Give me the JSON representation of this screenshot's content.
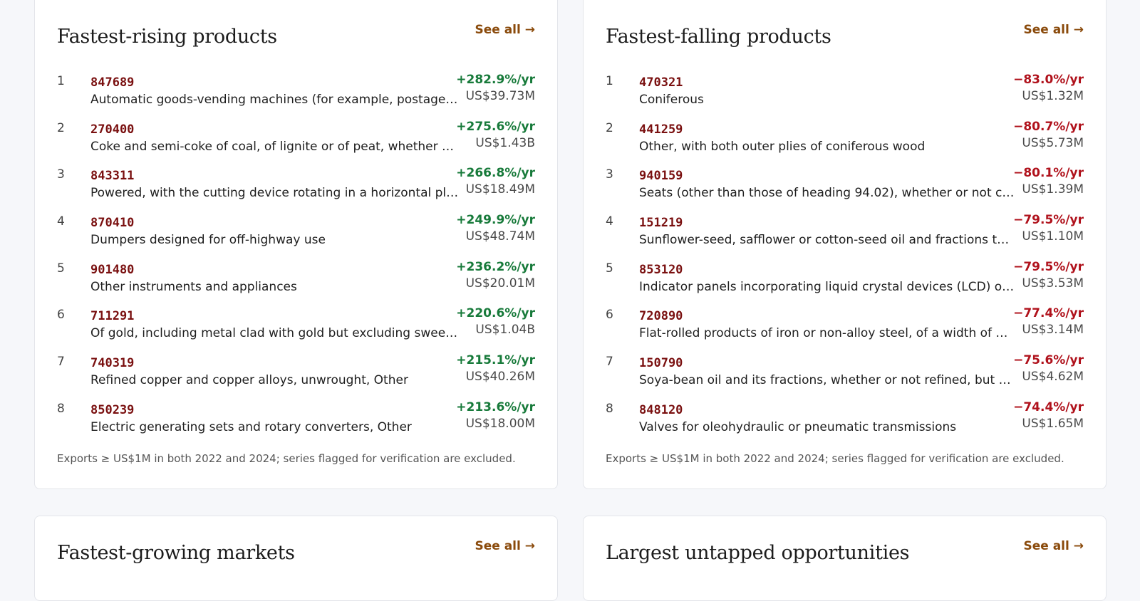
{
  "see_all_label": "See all →",
  "footnote": "Exports ≥ US$1M in both 2022 and 2024; series flagged for verification are excluded.",
  "colors": {
    "accent": "#8a4a0b",
    "code": "#7a1010",
    "positive": "#177a3a",
    "negative": "#b0121c"
  },
  "rising": {
    "title": "Fastest-rising products",
    "items": [
      {
        "rank": "1",
        "code": "847689",
        "desc": "Automatic goods-vending machines (for example, postage…",
        "rate": "+282.9%/yr",
        "amount": "US$39.73M"
      },
      {
        "rank": "2",
        "code": "270400",
        "desc": "Coke and semi-coke of coal, of lignite or of peat, whether …",
        "rate": "+275.6%/yr",
        "amount": "US$1.43B"
      },
      {
        "rank": "3",
        "code": "843311",
        "desc": "Powered, with the cutting device rotating in a horizontal pl…",
        "rate": "+266.8%/yr",
        "amount": "US$18.49M"
      },
      {
        "rank": "4",
        "code": "870410",
        "desc": "Dumpers designed for off-highway use",
        "rate": "+249.9%/yr",
        "amount": "US$48.74M"
      },
      {
        "rank": "5",
        "code": "901480",
        "desc": "Other instruments and appliances",
        "rate": "+236.2%/yr",
        "amount": "US$20.01M"
      },
      {
        "rank": "6",
        "code": "711291",
        "desc": "Of gold, including metal clad with gold but excluding swee…",
        "rate": "+220.6%/yr",
        "amount": "US$1.04B"
      },
      {
        "rank": "7",
        "code": "740319",
        "desc": "Refined copper and copper alloys, unwrought, Other",
        "rate": "+215.1%/yr",
        "amount": "US$40.26M"
      },
      {
        "rank": "8",
        "code": "850239",
        "desc": "Electric generating sets and rotary converters, Other",
        "rate": "+213.6%/yr",
        "amount": "US$18.00M"
      }
    ]
  },
  "falling": {
    "title": "Fastest-falling products",
    "items": [
      {
        "rank": "1",
        "code": "470321",
        "desc": "Coniferous",
        "rate": "−83.0%/yr",
        "amount": "US$1.32M"
      },
      {
        "rank": "2",
        "code": "441259",
        "desc": "Other, with both outer plies of coniferous wood",
        "rate": "−80.7%/yr",
        "amount": "US$5.73M"
      },
      {
        "rank": "3",
        "code": "940159",
        "desc": "Seats (other than those of heading 94.02), whether or not c…",
        "rate": "−80.1%/yr",
        "amount": "US$1.39M"
      },
      {
        "rank": "4",
        "code": "151219",
        "desc": "Sunflower-seed, safflower or cotton-seed oil and fractions t…",
        "rate": "−79.5%/yr",
        "amount": "US$1.10M"
      },
      {
        "rank": "5",
        "code": "853120",
        "desc": "Indicator panels incorporating liquid crystal devices (LCD) o…",
        "rate": "−79.5%/yr",
        "amount": "US$3.53M"
      },
      {
        "rank": "6",
        "code": "720890",
        "desc": "Flat-rolled products of iron or non-alloy steel, of a width of …",
        "rate": "−77.4%/yr",
        "amount": "US$3.14M"
      },
      {
        "rank": "7",
        "code": "150790",
        "desc": "Soya-bean oil and its fractions, whether or not refined, but …",
        "rate": "−75.6%/yr",
        "amount": "US$4.62M"
      },
      {
        "rank": "8",
        "code": "848120",
        "desc": "Valves for oleohydraulic or pneumatic transmissions",
        "rate": "−74.4%/yr",
        "amount": "US$1.65M"
      }
    ]
  },
  "growing_markets": {
    "title": "Fastest-growing markets"
  },
  "untapped": {
    "title": "Largest untapped opportunities"
  }
}
